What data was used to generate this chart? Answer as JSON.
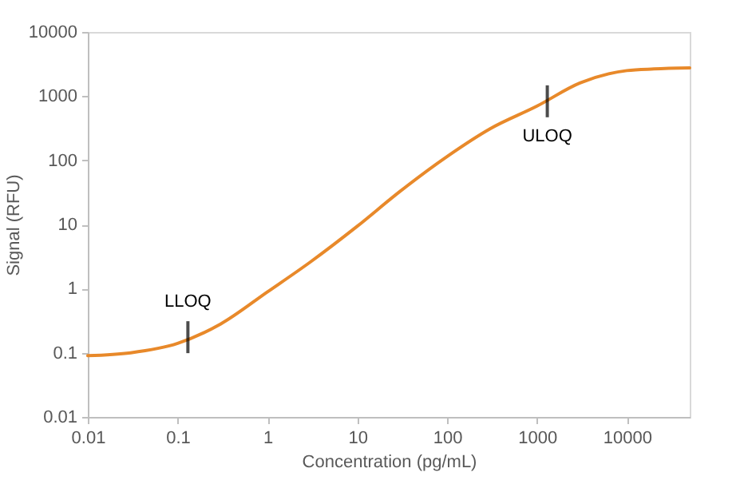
{
  "chart_data": {
    "type": "line",
    "xlabel": "Concentration (pg/mL)",
    "ylabel": "Signal (RFU)",
    "log": "xy",
    "grid": false,
    "marker": "none",
    "line_style": "solid",
    "xlim": [
      0.01,
      50000
    ],
    "xticks": [
      0.01,
      0.1,
      1,
      10,
      100,
      1000,
      10000
    ],
    "ylim": [
      0.01,
      10000
    ],
    "yticks": [
      0.01,
      0.1,
      1,
      10,
      100,
      1000,
      10000
    ],
    "x": [
      0.01,
      0.03,
      0.1,
      0.3,
      1,
      3,
      10,
      30,
      100,
      300,
      1000,
      3000,
      10000,
      20000,
      50000
    ],
    "series": [
      {
        "color": "#e8892a",
        "values": [
          0.09,
          0.1,
          0.14,
          0.28,
          0.89,
          2.6,
          9.4,
          33,
          115,
          310,
          700,
          1600,
          2500,
          2650,
          2750
        ]
      }
    ],
    "annotations": [
      {
        "text": "LLOQ",
        "x": 0.13,
        "y": 0.175
      },
      {
        "text": "ULOQ",
        "x": 1300,
        "y": 830
      }
    ]
  }
}
